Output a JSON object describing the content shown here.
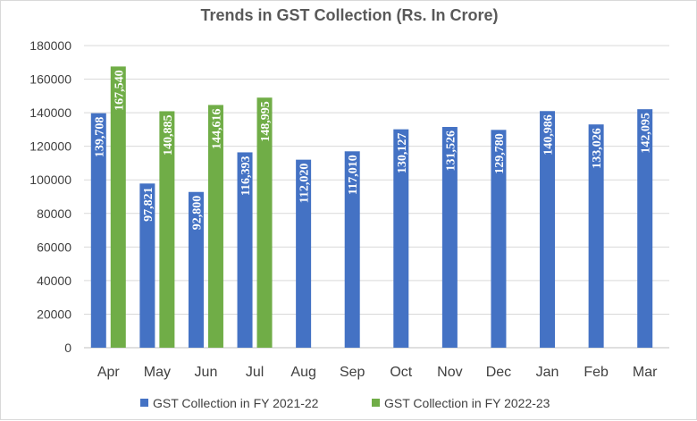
{
  "chart_data": {
    "type": "bar",
    "title": "Trends in GST Collection (Rs. In Crore)",
    "categories": [
      "Apr",
      "May",
      "Jun",
      "Jul",
      "Aug",
      "Sep",
      "Oct",
      "Nov",
      "Dec",
      "Jan",
      "Feb",
      "Mar"
    ],
    "series": [
      {
        "name": "GST Collection in FY 2021-22",
        "color": "#4472C4",
        "values": [
          139708,
          97821,
          92800,
          116393,
          112020,
          117010,
          130127,
          131526,
          129780,
          140986,
          133026,
          142095
        ],
        "labels": [
          "139,708",
          "97,821",
          "92,800",
          "116,393",
          "112,020",
          "117,010",
          "130,127",
          "131,526",
          "129,780",
          "140,986",
          "133,026",
          "142,095"
        ]
      },
      {
        "name": "GST Collection in FY 2022-23",
        "color": "#70AD47",
        "values": [
          167540,
          140885,
          144616,
          148995,
          null,
          null,
          null,
          null,
          null,
          null,
          null,
          null
        ],
        "labels": [
          "167,540",
          "140,885",
          "144,616",
          "148,995",
          "",
          "",
          "",
          "",
          "",
          "",
          "",
          ""
        ]
      }
    ],
    "ylim": [
      0,
      180000
    ],
    "yticks": [
      "0",
      "20000",
      "40000",
      "60000",
      "80000",
      "100000",
      "120000",
      "140000",
      "160000",
      "180000"
    ],
    "xlabel": "",
    "ylabel": "",
    "grid": true,
    "legend_position": "bottom"
  }
}
